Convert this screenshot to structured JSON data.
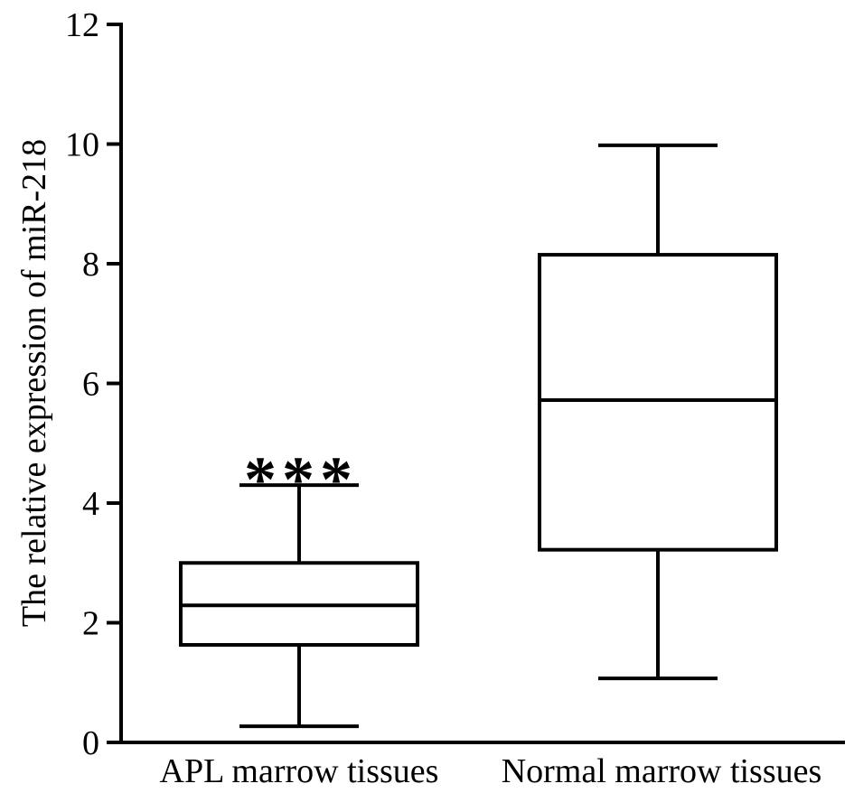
{
  "chart_data": {
    "type": "box",
    "title": "",
    "xlabel": "",
    "ylabel": "The relative expression of miR-218",
    "ylim": [
      0,
      12
    ],
    "yticks": [
      0,
      2,
      4,
      6,
      8,
      10,
      12
    ],
    "grid": false,
    "categories": [
      "APL marrow tissues",
      "Normal marrow tissues"
    ],
    "boxes": [
      {
        "category": "APL marrow tissues",
        "min": 0.27,
        "q1": 1.63,
        "median": 2.29,
        "q3": 3.0,
        "max": 4.3,
        "annotation": "***"
      },
      {
        "category": "Normal marrow tissues",
        "min": 1.07,
        "q1": 3.22,
        "median": 5.72,
        "q3": 8.15,
        "max": 9.98,
        "annotation": ""
      }
    ],
    "colors": {
      "stroke": "#000000",
      "fill": "#ffffff"
    }
  }
}
